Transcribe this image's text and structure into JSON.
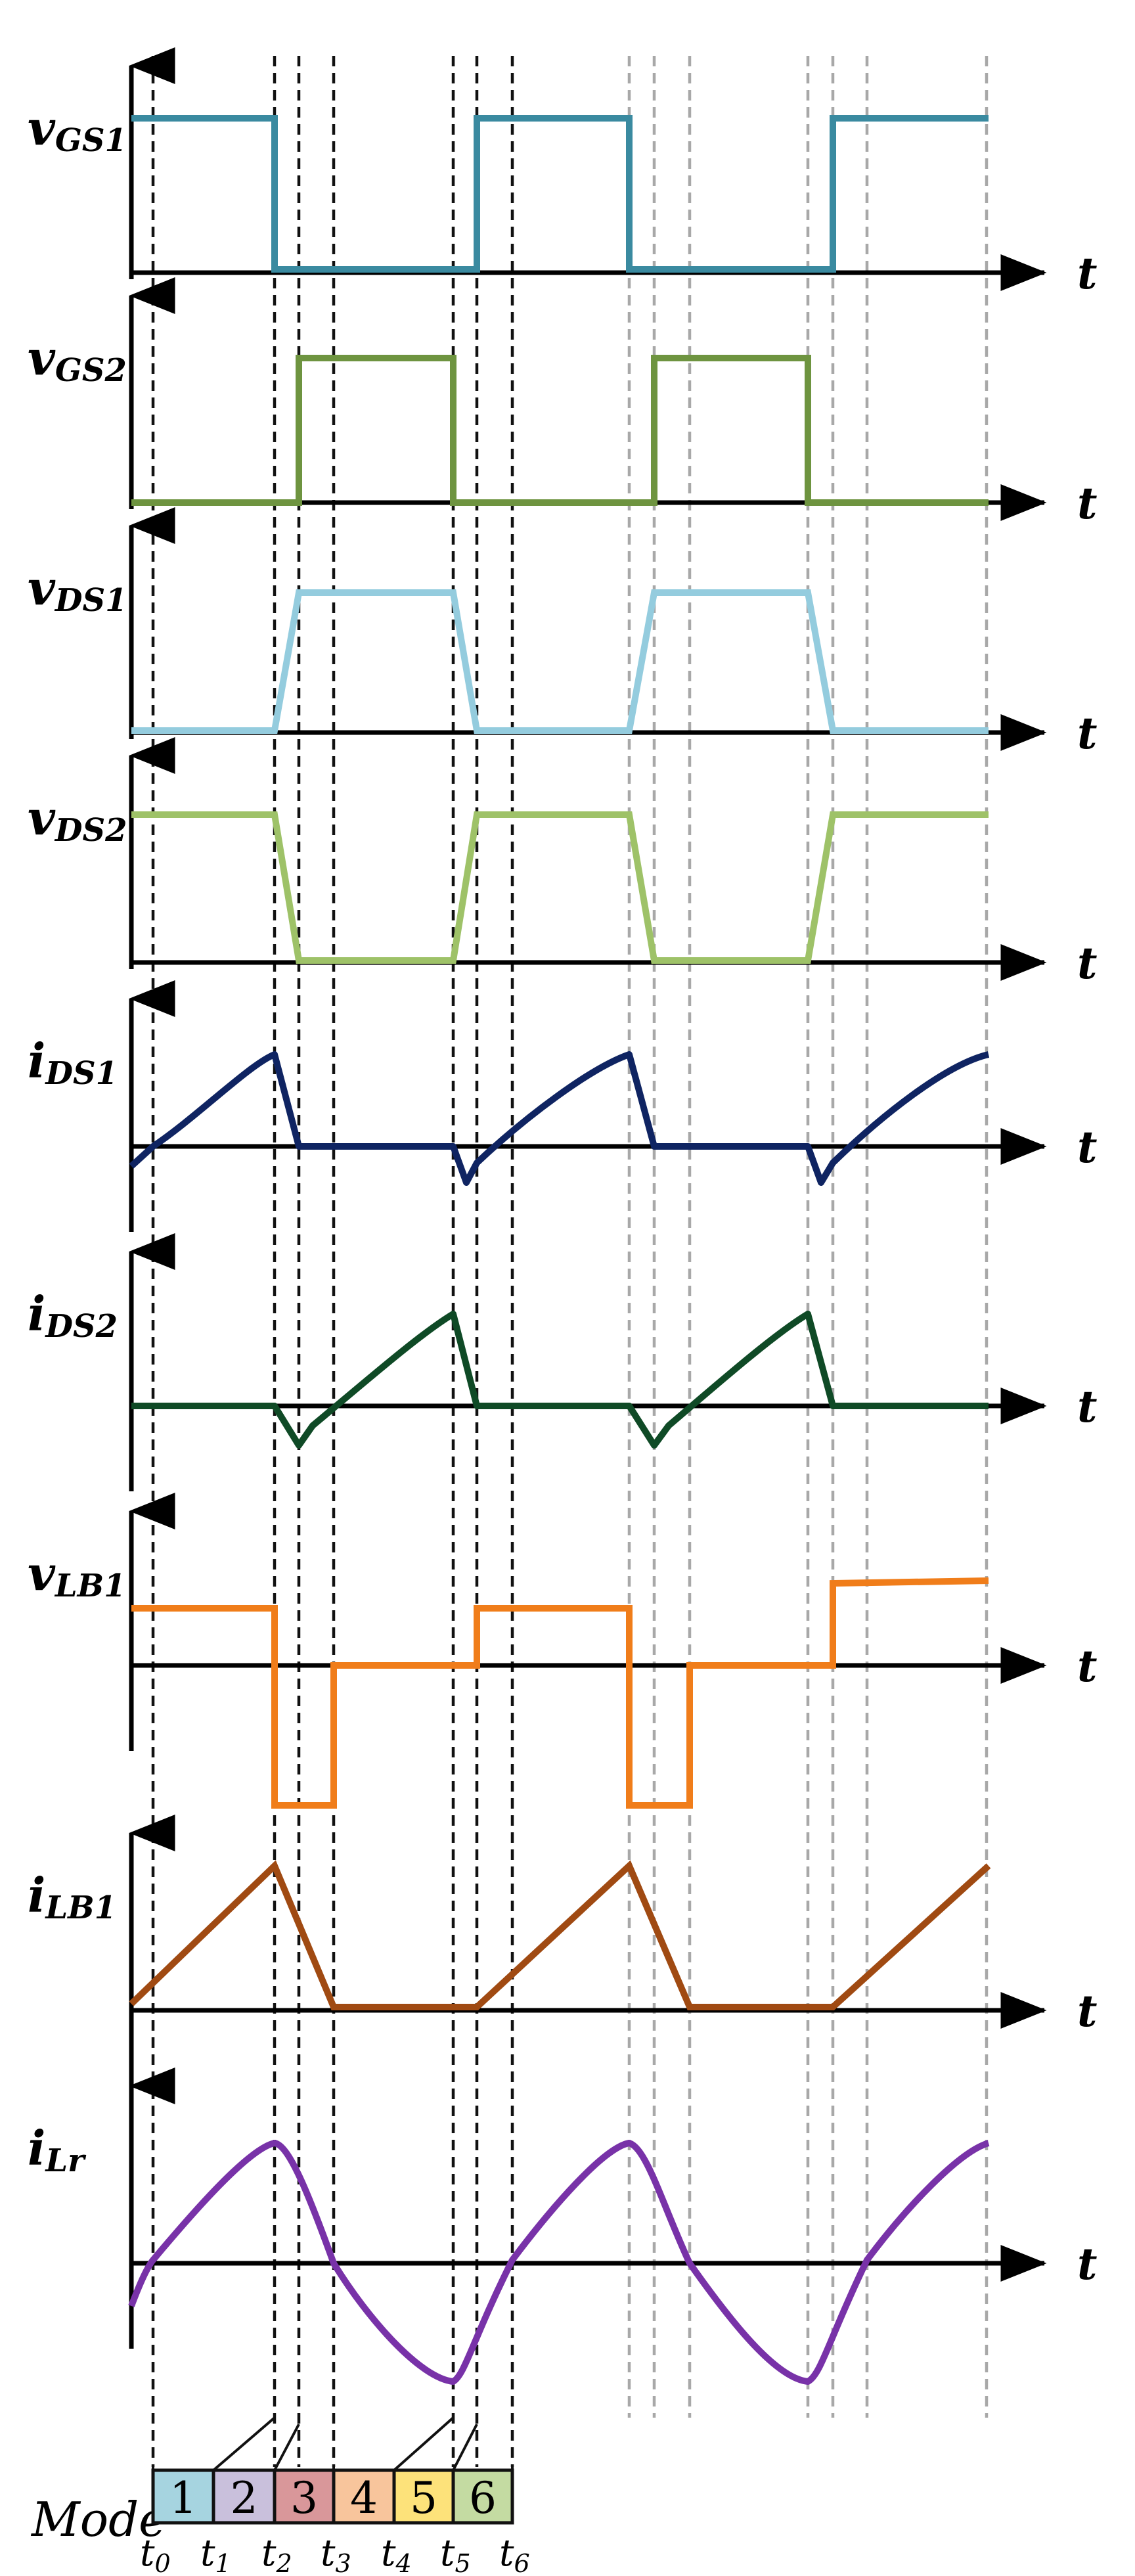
{
  "axis_label": "t",
  "mode_label": "Mode",
  "time_markers": [
    {
      "main": "t",
      "sub": "0"
    },
    {
      "main": "t",
      "sub": "1"
    },
    {
      "main": "t",
      "sub": "2"
    },
    {
      "main": "t",
      "sub": "3"
    },
    {
      "main": "t",
      "sub": "4"
    },
    {
      "main": "t",
      "sub": "5"
    },
    {
      "main": "t",
      "sub": "6"
    }
  ],
  "modes": [
    {
      "label": "1",
      "color": "#a6d4e0"
    },
    {
      "label": "2",
      "color": "#c9c0dc"
    },
    {
      "label": "3",
      "color": "#d9979a"
    },
    {
      "label": "4",
      "color": "#f8c59c"
    },
    {
      "label": "5",
      "color": "#fde27a"
    },
    {
      "label": "6",
      "color": "#c4dba2"
    }
  ],
  "signals": [
    {
      "id": "vgs1",
      "main": "v",
      "sub": "GS1",
      "color": "#3a8aa0"
    },
    {
      "id": "vgs2",
      "main": "v",
      "sub": "GS2",
      "color": "#6e9440"
    },
    {
      "id": "vds1",
      "main": "v",
      "sub": "DS1",
      "color": "#94ccde"
    },
    {
      "id": "vds2",
      "main": "v",
      "sub": "DS2",
      "color": "#9ec268"
    },
    {
      "id": "ids1",
      "main": "i",
      "sub": "DS1",
      "color": "#0f2462"
    },
    {
      "id": "ids2",
      "main": "i",
      "sub": "DS2",
      "color": "#0f4a26"
    },
    {
      "id": "vlb1",
      "main": "v",
      "sub": "LB1",
      "color": "#f07d1a"
    },
    {
      "id": "ilb1",
      "main": "i",
      "sub": "LB1",
      "color": "#a04a12"
    },
    {
      "id": "ilr",
      "main": "i",
      "sub": "Lr",
      "color": "#7832a8"
    }
  ]
}
